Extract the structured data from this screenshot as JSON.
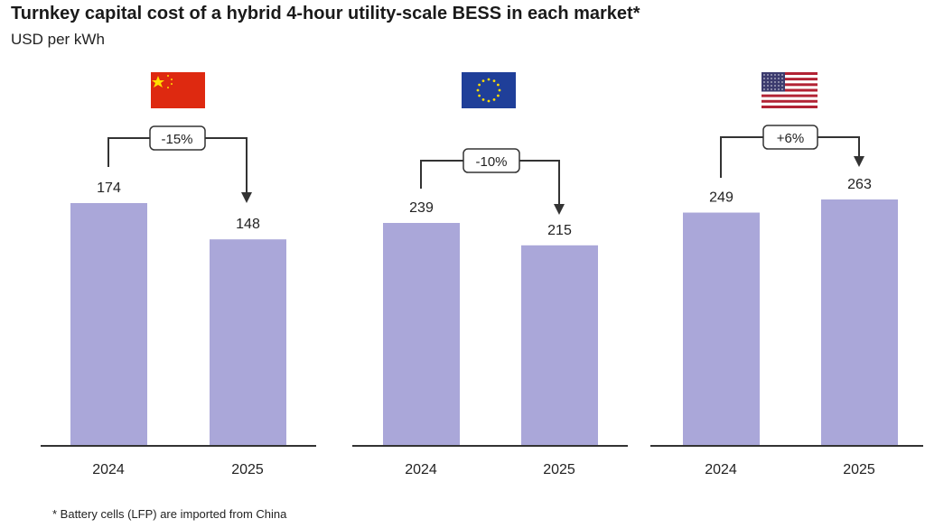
{
  "chart_data": {
    "type": "bar",
    "title": "Turnkey capital cost of a hybrid 4-hour utility-scale BESS in each market*",
    "ylabel": "USD per kWh",
    "categories": [
      "2024",
      "2025"
    ],
    "panels": [
      {
        "market": "China",
        "flag": "china-flag",
        "values": [
          174,
          148
        ],
        "change": "-15%"
      },
      {
        "market": "Europe",
        "flag": "eu-flag",
        "values": [
          239,
          215
        ],
        "change": "-10%"
      },
      {
        "market": "United States",
        "flag": "us-flag",
        "values": [
          249,
          263
        ],
        "change": "+6%"
      }
    ],
    "footnote": "* Battery cells (LFP) are imported from China",
    "bar_color": "#aaa7d9"
  }
}
